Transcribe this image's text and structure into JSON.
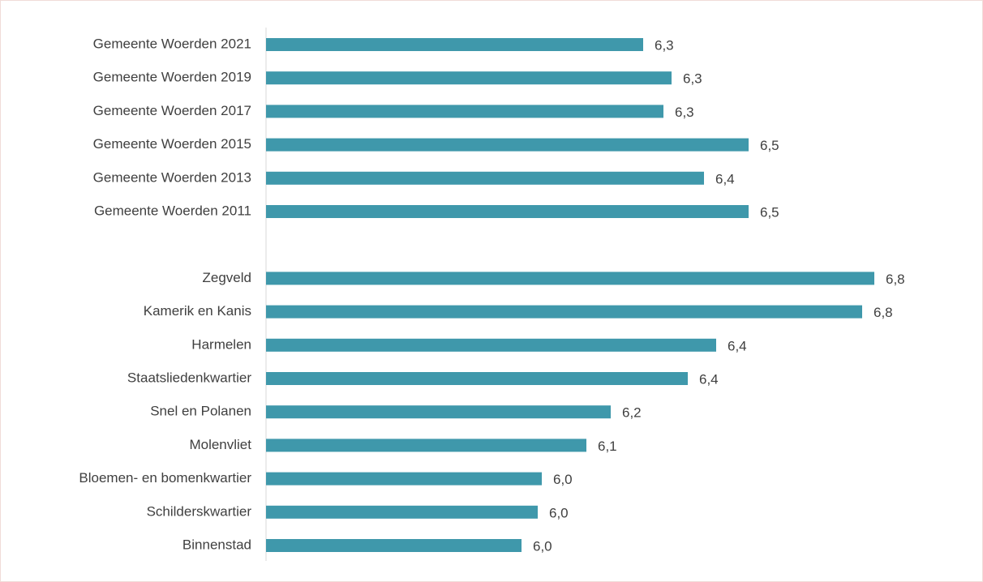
{
  "chart_data": {
    "type": "bar",
    "orientation": "horizontal",
    "categories": [
      "Gemeente Woerden 2021",
      "Gemeente Woerden 2019",
      "Gemeente Woerden 2017",
      "Gemeente Woerden 2015",
      "Gemeente Woerden 2013",
      "Gemeente Woerden 2011",
      null,
      "Zegveld",
      "Kamerik en Kanis",
      "Harmelen",
      "Staatsliedenkwartier",
      "Snel en Polanen",
      "Molenvliet",
      "Bloemen- en bomenkwartier",
      "Schilderskwartier",
      "Binnenstad"
    ],
    "values": [
      6.26,
      6.33,
      6.31,
      6.52,
      6.41,
      6.52,
      null,
      6.83,
      6.8,
      6.44,
      6.37,
      6.18,
      6.12,
      6.01,
      6.0,
      5.96
    ],
    "value_labels": [
      "6,3",
      "6,3",
      "6,3",
      "6,5",
      "6,4",
      "6,5",
      null,
      "6,8",
      "6,8",
      "6,4",
      "6,4",
      "6,2",
      "6,1",
      "6,0",
      "6,0",
      "6,0"
    ],
    "color": "#3f98ab",
    "xlim": [
      5.33,
      7.0
    ]
  }
}
